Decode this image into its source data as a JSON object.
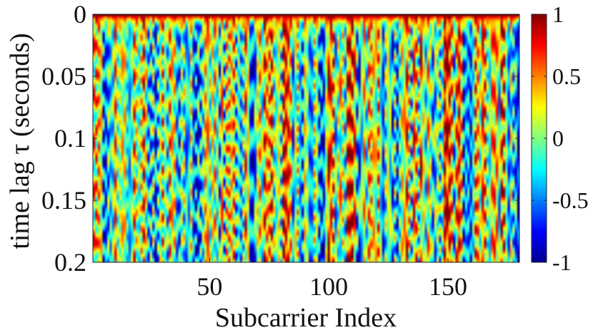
{
  "chart_data": {
    "type": "heatmap",
    "title": "",
    "xlabel": "Subcarrier Index",
    "ylabel": "time lag τ (seconds)",
    "xlim": [
      1,
      180
    ],
    "ylim": [
      0,
      0.2
    ],
    "y_reversed": true,
    "x_ticks": [
      50,
      100,
      150
    ],
    "x_tick_labels": [
      "50",
      "100",
      "150"
    ],
    "y_ticks": [
      0,
      0.05,
      0.1,
      0.15,
      0.2
    ],
    "y_tick_labels": [
      "0",
      "0.05",
      "0.1",
      "0.15",
      "0.2"
    ],
    "colormap": "jet",
    "clim": [
      -1,
      1
    ],
    "colorbar_ticks": [
      1,
      0.5,
      0,
      -0.5,
      -1
    ],
    "colorbar_tick_labels": [
      "1",
      "0.5",
      "0",
      "-0.5",
      "-1"
    ],
    "value_summary": "Autocorrelation of each subcarrier versus time lag: value 1 at lag 0 (red band along the top), dropping quickly and fluctuating between about -1 and 1 for larger lags, with vertical streak structure across subcarriers."
  }
}
